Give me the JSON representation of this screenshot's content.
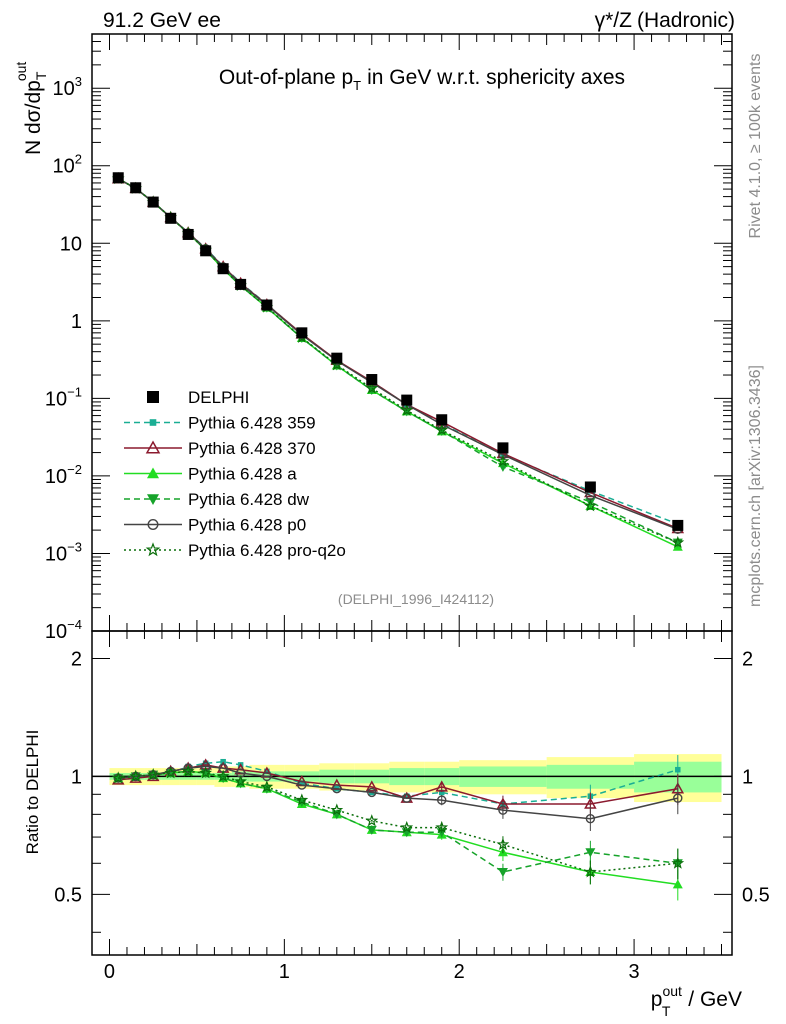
{
  "header": {
    "left": "91.2 GeV ee",
    "right_sym": "γ*/Z",
    "right_text": "(Hadronic)"
  },
  "side_labels": {
    "rivet": "Rivet 4.1.0, ≥ 100k events",
    "mcplots": "mcplots.cern.ch [arXiv:1306.3436]"
  },
  "chart_data": [
    {
      "type": "line",
      "name": "main-plot",
      "title_pre": "Out-of-plane p",
      "title_sub": "T",
      "title_post": "in GeV w.r.t. sphericity axes",
      "ylabel_main": "N  dσ/dp",
      "ylabel_sup": "out",
      "ylabel_sub": "T",
      "yscale": "log",
      "ylim": [
        0.0001,
        5000
      ],
      "xlim": [
        -0.1,
        3.56
      ],
      "ytick_labels": [
        {
          "base": "10",
          "exp": "3"
        },
        {
          "base": "10",
          "exp": "2"
        },
        {
          "base": "10",
          "exp": ""
        },
        {
          "base": "1",
          "exp": ""
        },
        {
          "base": "10",
          "exp": "−1"
        },
        {
          "base": "10",
          "exp": "−2"
        },
        {
          "base": "10",
          "exp": "−3"
        },
        {
          "base": "10",
          "exp": "−4"
        }
      ],
      "ytick_values": [
        1000,
        100,
        10,
        1,
        0.1,
        0.01,
        0.001,
        0.0001
      ],
      "watermark": "(DELPHI_1996_I424112)",
      "x": [
        0.05,
        0.15,
        0.25,
        0.35,
        0.45,
        0.55,
        0.65,
        0.75,
        0.9,
        1.1,
        1.3,
        1.5,
        1.7,
        1.9,
        2.25,
        2.75,
        3.25
      ],
      "data": {
        "name": "DELPHI",
        "values": [
          70,
          52,
          34,
          21,
          13,
          8.0,
          4.7,
          2.95,
          1.6,
          0.7,
          0.33,
          0.175,
          0.095,
          0.053,
          0.023,
          0.0072,
          0.0023
        ]
      },
      "series": [
        {
          "name": "Pythia 6.428 359",
          "color": "#1aae94",
          "dash": "6,4",
          "marker": "square",
          "values": [
            68,
            51,
            34,
            21.5,
            13.8,
            8.6,
            5.1,
            3.1,
            1.64,
            0.67,
            0.31,
            0.16,
            0.084,
            0.047,
            0.019,
            0.0064,
            0.0024
          ]
        },
        {
          "name": "Pythia 6.428 370",
          "color": "#8b1a2e",
          "dash": "",
          "marker": "tri-up-open",
          "values": [
            68,
            51,
            34,
            21.5,
            13.7,
            8.5,
            5.0,
            3.05,
            1.62,
            0.68,
            0.31,
            0.165,
            0.083,
            0.05,
            0.0195,
            0.0061,
            0.0021
          ]
        },
        {
          "name": "Pythia 6.428 a",
          "color": "#22dd22",
          "dash": "",
          "marker": "tri-up",
          "values": [
            68,
            51,
            34,
            21.5,
            13.5,
            8.2,
            4.65,
            2.85,
            1.48,
            0.6,
            0.265,
            0.128,
            0.068,
            0.0375,
            0.0146,
            0.0041,
            0.00122
          ]
        },
        {
          "name": "Pythia 6.428 dw",
          "color": "#16a32a",
          "dash": "6,4",
          "marker": "tri-down",
          "values": [
            68,
            51,
            34,
            21.5,
            13.5,
            8.2,
            4.65,
            2.85,
            1.48,
            0.6,
            0.265,
            0.128,
            0.068,
            0.038,
            0.0131,
            0.0046,
            0.00138
          ]
        },
        {
          "name": "Pythia 6.428 p0",
          "color": "#444444",
          "dash": "",
          "marker": "circle-open",
          "values": [
            68,
            51,
            34,
            21.5,
            13.6,
            8.5,
            4.95,
            3.0,
            1.6,
            0.66,
            0.305,
            0.16,
            0.083,
            0.046,
            0.0188,
            0.0056,
            0.00205
          ]
        },
        {
          "name": "Pythia 6.428 pro-q2o",
          "color": "#0a6e0a",
          "dash": "2,3",
          "marker": "star",
          "values": [
            68,
            51,
            34,
            21.5,
            13.5,
            8.2,
            4.7,
            2.85,
            1.5,
            0.61,
            0.27,
            0.135,
            0.07,
            0.039,
            0.0154,
            0.0041,
            0.00138
          ]
        }
      ]
    },
    {
      "type": "line",
      "name": "ratio-plot",
      "ylabel": "Ratio to DELPHI",
      "xlabel_pre": "p",
      "xlabel_sup": "out",
      "xlabel_sub": "T",
      "xlabel_post": " / GeV",
      "ylim": [
        0.35,
        2.35
      ],
      "xlim": [
        -0.1,
        3.56
      ],
      "xtick_labels": [
        "0",
        "1",
        "2",
        "3"
      ],
      "xtick_values": [
        0,
        1,
        2,
        3
      ],
      "ytick_labels": [
        "0.5",
        "1",
        "2"
      ],
      "ytick_values": [
        0.5,
        1,
        2
      ],
      "x": [
        0.05,
        0.15,
        0.25,
        0.35,
        0.45,
        0.55,
        0.65,
        0.75,
        0.9,
        1.1,
        1.3,
        1.5,
        1.7,
        1.9,
        2.25,
        2.75,
        3.25
      ],
      "bin_edges": [
        0,
        0.1,
        0.2,
        0.3,
        0.4,
        0.5,
        0.6,
        0.7,
        0.8,
        1.0,
        1.2,
        1.4,
        1.6,
        1.8,
        2.0,
        2.5,
        3.0,
        3.5
      ],
      "band_stat": [
        0.02,
        0.02,
        0.02,
        0.02,
        0.02,
        0.02,
        0.02,
        0.03,
        0.03,
        0.03,
        0.04,
        0.04,
        0.05,
        0.05,
        0.06,
        0.07,
        0.09
      ],
      "band_total": [
        0.05,
        0.05,
        0.05,
        0.05,
        0.05,
        0.05,
        0.06,
        0.06,
        0.07,
        0.07,
        0.08,
        0.08,
        0.09,
        0.09,
        0.1,
        0.12,
        0.14
      ],
      "series": [
        {
          "name": "Pythia 6.428 359",
          "values": [
            0.98,
            0.99,
            1.01,
            1.02,
            1.06,
            1.08,
            1.09,
            1.07,
            1.03,
            0.96,
            0.93,
            0.91,
            0.89,
            0.91,
            0.85,
            0.89,
            1.04
          ]
        },
        {
          "name": "Pythia 6.428 370",
          "values": [
            0.98,
            0.99,
            1.0,
            1.03,
            1.05,
            1.07,
            1.05,
            1.04,
            1.02,
            0.97,
            0.95,
            0.94,
            0.88,
            0.94,
            0.85,
            0.85,
            0.93
          ]
        },
        {
          "name": "Pythia 6.428 a",
          "values": [
            0.99,
            1.0,
            1.01,
            1.02,
            1.03,
            1.02,
            0.99,
            0.96,
            0.93,
            0.85,
            0.8,
            0.73,
            0.72,
            0.71,
            0.64,
            0.57,
            0.53
          ]
        },
        {
          "name": "Pythia 6.428 dw",
          "values": [
            0.99,
            1.0,
            1.01,
            1.02,
            1.03,
            1.02,
            0.99,
            0.96,
            0.93,
            0.86,
            0.8,
            0.73,
            0.72,
            0.72,
            0.57,
            0.64,
            0.6
          ]
        },
        {
          "name": "Pythia 6.428 p0",
          "values": [
            0.99,
            1.0,
            1.01,
            1.03,
            1.05,
            1.06,
            1.05,
            1.02,
            1.0,
            0.95,
            0.93,
            0.91,
            0.88,
            0.87,
            0.82,
            0.78,
            0.88
          ]
        },
        {
          "name": "Pythia 6.428 pro-q2o",
          "values": [
            0.99,
            1.0,
            1.01,
            1.02,
            1.03,
            1.02,
            1.0,
            0.97,
            0.94,
            0.87,
            0.82,
            0.77,
            0.74,
            0.74,
            0.67,
            0.57,
            0.6
          ]
        }
      ]
    }
  ]
}
